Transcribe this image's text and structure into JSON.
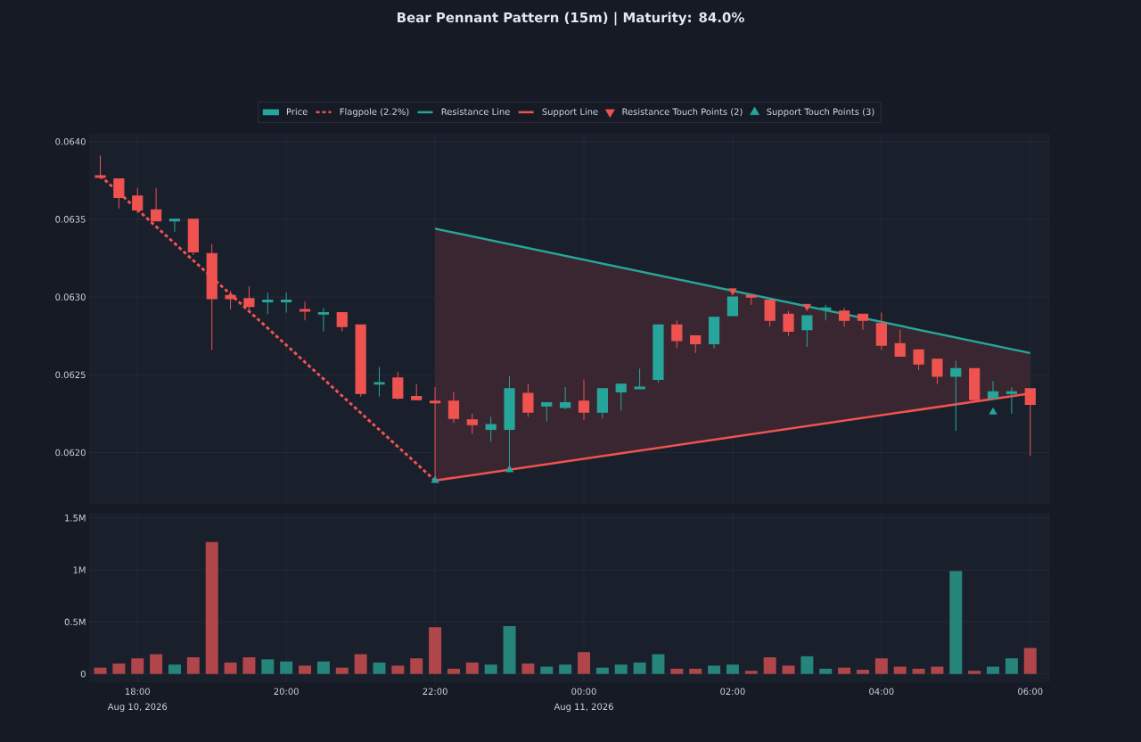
{
  "chart_data": [
    {
      "type": "candlestick",
      "title": "Bear Pennant Pattern (15m) | Maturity: 84.0%",
      "x": [
        "2026-08-10T17:30",
        "2026-08-10T17:45",
        "2026-08-10T18:00",
        "2026-08-10T18:15",
        "2026-08-10T18:30",
        "2026-08-10T18:45",
        "2026-08-10T19:00",
        "2026-08-10T19:15",
        "2026-08-10T19:30",
        "2026-08-10T19:45",
        "2026-08-10T20:00",
        "2026-08-10T20:15",
        "2026-08-10T20:30",
        "2026-08-10T20:45",
        "2026-08-10T21:00",
        "2026-08-10T21:15",
        "2026-08-10T21:30",
        "2026-08-10T21:45",
        "2026-08-10T22:00",
        "2026-08-10T22:15",
        "2026-08-10T22:30",
        "2026-08-10T22:45",
        "2026-08-10T23:00",
        "2026-08-10T23:15",
        "2026-08-10T23:30",
        "2026-08-10T23:45",
        "2026-08-11T00:00",
        "2026-08-11T00:15",
        "2026-08-11T00:30",
        "2026-08-11T00:45",
        "2026-08-11T01:00",
        "2026-08-11T01:15",
        "2026-08-11T01:30",
        "2026-08-11T01:45",
        "2026-08-11T02:00",
        "2026-08-11T02:15",
        "2026-08-11T02:30",
        "2026-08-11T02:45",
        "2026-08-11T03:00",
        "2026-08-11T03:15",
        "2026-08-11T03:30",
        "2026-08-11T03:45",
        "2026-08-11T04:00",
        "2026-08-11T04:15",
        "2026-08-11T04:30",
        "2026-08-11T04:45",
        "2026-08-11T05:00",
        "2026-08-11T05:15",
        "2026-08-11T05:30",
        "2026-08-11T05:45",
        "2026-08-11T06:00"
      ],
      "xlim": [
        "2026-08-10T17:21",
        "2026-08-11T06:16"
      ],
      "xticks": [
        {
          "value": "2026-08-10T18:00",
          "label": null
        },
        {
          "value": "2026-08-10T20:00",
          "label": null
        },
        {
          "value": "2026-08-10T22:00",
          "label": null
        },
        {
          "value": "2026-08-11T00:00",
          "label": null
        },
        {
          "value": "2026-08-11T02:00",
          "label": null
        },
        {
          "value": "2026-08-11T04:00",
          "label": null
        },
        {
          "value": "2026-08-11T06:00",
          "label": null
        }
      ],
      "ylim": [
        0.06167,
        0.06405
      ],
      "yticks": [
        {
          "value": 0.062,
          "label": "0.0620"
        },
        {
          "value": 0.0625,
          "label": "0.0625"
        },
        {
          "value": 0.063,
          "label": "0.0630"
        },
        {
          "value": 0.0635,
          "label": "0.0635"
        },
        {
          "value": 0.064,
          "label": "0.0640"
        }
      ],
      "tick_labels": "y",
      "grid": true,
      "legend": "top",
      "series": [
        {
          "name": "Price",
          "type": "candlestick",
          "ohlc": [
            [
              0.06378,
              0.06391,
              0.06376,
              0.06377
            ],
            [
              0.06376,
              0.06376,
              0.06357,
              0.06364
            ],
            [
              0.06365,
              0.0637,
              0.06354,
              0.06356
            ],
            [
              0.06356,
              0.0637,
              0.06349,
              0.06349
            ],
            [
              0.06349,
              0.0635,
              0.06342,
              0.0635
            ],
            [
              0.0635,
              0.0635,
              0.06327,
              0.06329
            ],
            [
              0.06328,
              0.06334,
              0.06266,
              0.06299
            ],
            [
              0.06301,
              0.06304,
              0.06292,
              0.06299
            ],
            [
              0.06299,
              0.06307,
              0.06292,
              0.06294
            ],
            [
              0.06297,
              0.06303,
              0.06289,
              0.06298
            ],
            [
              0.06297,
              0.06303,
              0.0629,
              0.06298
            ],
            [
              0.06292,
              0.06297,
              0.06285,
              0.06291
            ],
            [
              0.06289,
              0.06293,
              0.06278,
              0.0629
            ],
            [
              0.0629,
              0.0629,
              0.06278,
              0.06281
            ],
            [
              0.06282,
              0.06282,
              0.06236,
              0.06238
            ],
            [
              0.06244,
              0.06255,
              0.06236,
              0.06245
            ],
            [
              0.06248,
              0.06252,
              0.06234,
              0.06235
            ],
            [
              0.06236,
              0.06244,
              0.06234,
              0.06234
            ],
            [
              0.06233,
              0.06242,
              0.06183,
              0.06232
            ],
            [
              0.06233,
              0.06239,
              0.06219,
              0.06222
            ],
            [
              0.06221,
              0.06225,
              0.06212,
              0.06218
            ],
            [
              0.06215,
              0.06223,
              0.06207,
              0.06218
            ],
            [
              0.06215,
              0.06249,
              0.06189,
              0.06241
            ],
            [
              0.06238,
              0.06244,
              0.06223,
              0.06226
            ],
            [
              0.0623,
              0.06232,
              0.0622,
              0.06232
            ],
            [
              0.06229,
              0.06242,
              0.06228,
              0.06232
            ],
            [
              0.06233,
              0.06247,
              0.06221,
              0.06226
            ],
            [
              0.06226,
              0.06241,
              0.06222,
              0.06241
            ],
            [
              0.06239,
              0.06244,
              0.06227,
              0.06244
            ],
            [
              0.06241,
              0.06254,
              0.06241,
              0.06242
            ],
            [
              0.06247,
              0.06282,
              0.06245,
              0.06282
            ],
            [
              0.06282,
              0.06285,
              0.06267,
              0.06272
            ],
            [
              0.06275,
              0.06275,
              0.06264,
              0.0627
            ],
            [
              0.0627,
              0.06287,
              0.06267,
              0.06287
            ],
            [
              0.06288,
              0.063,
              0.06288,
              0.063
            ],
            [
              0.06301,
              0.06301,
              0.06295,
              0.063
            ],
            [
              0.06298,
              0.06298,
              0.06281,
              0.06285
            ],
            [
              0.06289,
              0.06291,
              0.06275,
              0.06278
            ],
            [
              0.06279,
              0.06288,
              0.06268,
              0.06288
            ],
            [
              0.06292,
              0.06295,
              0.06285,
              0.06293
            ],
            [
              0.06291,
              0.06293,
              0.06281,
              0.06285
            ],
            [
              0.06289,
              0.06289,
              0.06279,
              0.06285
            ],
            [
              0.06283,
              0.0629,
              0.06266,
              0.06269
            ],
            [
              0.0627,
              0.06279,
              0.06262,
              0.06262
            ],
            [
              0.06266,
              0.06266,
              0.06253,
              0.06257
            ],
            [
              0.0626,
              0.0626,
              0.06244,
              0.06249
            ],
            [
              0.06249,
              0.06259,
              0.06214,
              0.06254
            ],
            [
              0.06254,
              0.06254,
              0.06234,
              0.06234
            ],
            [
              0.06235,
              0.06246,
              0.06235,
              0.06239
            ],
            [
              0.06238,
              0.06242,
              0.06225,
              0.06239
            ],
            [
              0.06241,
              0.06241,
              0.06198,
              0.06231
            ]
          ],
          "colors": [
            "#ef5350",
            "#ef5350",
            "#ef5350",
            "#ef5350",
            "#26a69a",
            "#ef5350",
            "#ef5350",
            "#ef5350",
            "#ef5350",
            "#26a69a",
            "#26a69a",
            "#ef5350",
            "#26a69a",
            "#ef5350",
            "#ef5350",
            "#26a69a",
            "#ef5350",
            "#ef5350",
            "#ef5350",
            "#ef5350",
            "#ef5350",
            "#26a69a",
            "#26a69a",
            "#ef5350",
            "#26a69a",
            "#26a69a",
            "#ef5350",
            "#26a69a",
            "#26a69a",
            "#26a69a",
            "#26a69a",
            "#ef5350",
            "#ef5350",
            "#26a69a",
            "#26a69a",
            "#ef5350",
            "#ef5350",
            "#ef5350",
            "#26a69a",
            "#26a69a",
            "#ef5350",
            "#ef5350",
            "#ef5350",
            "#ef5350",
            "#ef5350",
            "#ef5350",
            "#26a69a",
            "#ef5350",
            "#26a69a",
            "#26a69a",
            "#ef5350"
          ]
        },
        {
          "name": "Flagpole (2.2%)",
          "type": "line",
          "line_style": "dashed",
          "color": "#ef5350",
          "x": [
            "2026-08-10T17:30",
            "2026-08-10T22:00"
          ],
          "values": [
            0.06378,
            0.06182
          ]
        },
        {
          "name": "Resistance Line",
          "type": "line",
          "color": "#26a69a",
          "x": [
            "2026-08-10T22:00",
            "2026-08-11T06:00"
          ],
          "values": [
            0.06344,
            0.06264
          ],
          "lower": [
            0.06182,
            0.06238
          ],
          "upper": [
            0.06344,
            0.06264
          ]
        },
        {
          "name": "Support Line",
          "type": "line",
          "color": "#ef5350",
          "x": [
            "2026-08-10T22:00",
            "2026-08-11T06:00"
          ],
          "values": [
            0.06182,
            0.06238
          ]
        },
        {
          "name": "Resistance Touch Points (2)",
          "type": "scatter",
          "marker": "triangle-down",
          "color": "#ef5350",
          "x": [
            "2026-08-11T02:00",
            "2026-08-11T03:00"
          ],
          "values": [
            0.06304,
            0.06294
          ]
        },
        {
          "name": "Support Touch Points (3)",
          "type": "scatter",
          "marker": "triangle",
          "color": "#26a69a",
          "x": [
            "2026-08-10T22:00",
            "2026-08-10T23:00",
            "2026-08-11T05:30"
          ],
          "values": [
            0.06182,
            0.06189,
            0.06226
          ]
        }
      ]
    },
    {
      "type": "bar",
      "x": [
        "2026-08-10T17:30",
        "2026-08-10T17:45",
        "2026-08-10T18:00",
        "2026-08-10T18:15",
        "2026-08-10T18:30",
        "2026-08-10T18:45",
        "2026-08-10T19:00",
        "2026-08-10T19:15",
        "2026-08-10T19:30",
        "2026-08-10T19:45",
        "2026-08-10T20:00",
        "2026-08-10T20:15",
        "2026-08-10T20:30",
        "2026-08-10T20:45",
        "2026-08-10T21:00",
        "2026-08-10T21:15",
        "2026-08-10T21:30",
        "2026-08-10T21:45",
        "2026-08-10T22:00",
        "2026-08-10T22:15",
        "2026-08-10T22:30",
        "2026-08-10T22:45",
        "2026-08-10T23:00",
        "2026-08-10T23:15",
        "2026-08-10T23:30",
        "2026-08-10T23:45",
        "2026-08-11T00:00",
        "2026-08-11T00:15",
        "2026-08-11T00:30",
        "2026-08-11T00:45",
        "2026-08-11T01:00",
        "2026-08-11T01:15",
        "2026-08-11T01:30",
        "2026-08-11T01:45",
        "2026-08-11T02:00",
        "2026-08-11T02:15",
        "2026-08-11T02:30",
        "2026-08-11T02:45",
        "2026-08-11T03:00",
        "2026-08-11T03:15",
        "2026-08-11T03:30",
        "2026-08-11T03:45",
        "2026-08-11T04:00",
        "2026-08-11T04:15",
        "2026-08-11T04:30",
        "2026-08-11T04:45",
        "2026-08-11T05:00",
        "2026-08-11T05:15",
        "2026-08-11T05:30",
        "2026-08-11T05:45",
        "2026-08-11T06:00"
      ],
      "values": [
        0.06,
        0.1,
        0.15,
        0.19,
        0.09,
        0.16,
        1.27,
        0.11,
        0.16,
        0.14,
        0.12,
        0.08,
        0.12,
        0.06,
        0.19,
        0.11,
        0.08,
        0.15,
        0.45,
        0.05,
        0.11,
        0.09,
        0.46,
        0.1,
        0.07,
        0.09,
        0.21,
        0.06,
        0.09,
        0.11,
        0.19,
        0.05,
        0.05,
        0.08,
        0.09,
        0.03,
        0.16,
        0.08,
        0.17,
        0.05,
        0.06,
        0.04,
        0.15,
        0.07,
        0.05,
        0.07,
        0.99,
        0.03,
        0.07,
        0.15,
        0.25
      ],
      "colors": [
        "#b0464a",
        "#b0464a",
        "#b0464a",
        "#b0464a",
        "#26857a",
        "#b0464a",
        "#b0464a",
        "#b0464a",
        "#b0464a",
        "#26857a",
        "#26857a",
        "#b0464a",
        "#26857a",
        "#b0464a",
        "#b0464a",
        "#26857a",
        "#b0464a",
        "#b0464a",
        "#b0464a",
        "#b0464a",
        "#b0464a",
        "#26857a",
        "#26857a",
        "#b0464a",
        "#26857a",
        "#26857a",
        "#b0464a",
        "#26857a",
        "#26857a",
        "#26857a",
        "#26857a",
        "#b0464a",
        "#b0464a",
        "#26857a",
        "#26857a",
        "#b0464a",
        "#b0464a",
        "#b0464a",
        "#26857a",
        "#26857a",
        "#b0464a",
        "#b0464a",
        "#b0464a",
        "#b0464a",
        "#b0464a",
        "#b0464a",
        "#26857a",
        "#b0464a",
        "#26857a",
        "#26857a",
        "#b0464a"
      ],
      "xlim": [
        "2026-08-10T17:21",
        "2026-08-11T06:16"
      ],
      "xticks": [
        {
          "value": "2026-08-10T18:00",
          "label": "18:00"
        },
        {
          "value": "2026-08-10T20:00",
          "label": "20:00"
        },
        {
          "value": "2026-08-10T22:00",
          "label": "22:00"
        },
        {
          "value": "2026-08-11T00:00",
          "label": "00:00"
        },
        {
          "value": "2026-08-11T02:00",
          "label": "02:00"
        },
        {
          "value": "2026-08-11T04:00",
          "label": "04:00"
        },
        {
          "value": "2026-08-11T06:00",
          "label": "06:00"
        }
      ],
      "ylim": [
        -0.08,
        1.55
      ],
      "yticks": [
        0,
        {
          "value": 0.5,
          "label": "0.5M"
        },
        {
          "value": 1,
          "label": "1M"
        },
        {
          "value": 1.5,
          "label": "1.5M"
        }
      ],
      "grid": true,
      "annotations": [
        "Aug 10, 2026",
        "Aug 11, 2026"
      ]
    }
  ]
}
